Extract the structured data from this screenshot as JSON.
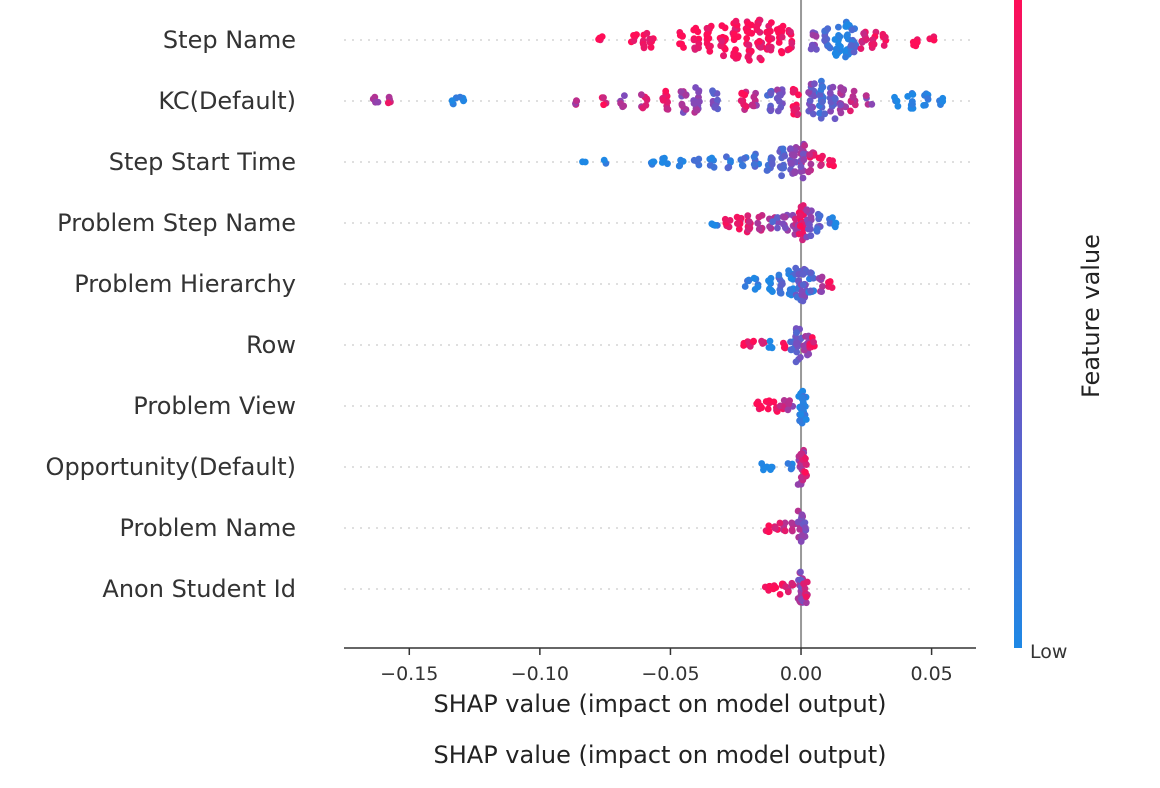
{
  "chart_data": {
    "type": "scatter",
    "subtype": "shap-beeswarm",
    "xlabel": "SHAP value (impact on model output)",
    "xlabel_repeat": "SHAP value (impact on model output)",
    "xlim": [
      -0.175,
      0.067
    ],
    "xticks": [
      -0.15,
      -0.1,
      -0.05,
      0.0,
      0.05
    ],
    "xtick_labels": [
      "−0.15",
      "−0.10",
      "−0.05",
      "0.00",
      "0.05"
    ],
    "colorbar": {
      "label": "Feature value",
      "low_label": "Low",
      "high_label": "",
      "low_color": "#1E88E5",
      "high_color": "#FF0D57",
      "mid_color": "#7C4DBE"
    },
    "features": [
      {
        "name": "Step Name",
        "points": [
          [
            -0.077,
            1.0
          ],
          [
            -0.064,
            1.0
          ],
          [
            -0.06,
            1.0
          ],
          [
            -0.057,
            1.0
          ],
          [
            -0.046,
            1.0
          ],
          [
            -0.04,
            1.0
          ],
          [
            -0.035,
            1.0
          ],
          [
            -0.03,
            1.0
          ],
          [
            -0.025,
            1.0
          ],
          [
            -0.02,
            1.0
          ],
          [
            -0.016,
            1.0
          ],
          [
            -0.012,
            1.0
          ],
          [
            -0.008,
            1.0
          ],
          [
            -0.004,
            1.0
          ],
          [
            0.005,
            0.5
          ],
          [
            0.01,
            0.3
          ],
          [
            0.014,
            0.0
          ],
          [
            0.018,
            0.0
          ],
          [
            0.02,
            0.2
          ],
          [
            0.024,
            0.8
          ],
          [
            0.028,
            1.0
          ],
          [
            0.032,
            1.0
          ],
          [
            0.044,
            1.0
          ],
          [
            0.05,
            1.0
          ]
        ],
        "widths": [
          4,
          6,
          8,
          8,
          8,
          12,
          14,
          16,
          20,
          22,
          20,
          18,
          14,
          10,
          10,
          14,
          16,
          18,
          14,
          10,
          8,
          6,
          6,
          4
        ]
      },
      {
        "name": "KC(Default)",
        "points": [
          [
            -0.163,
            0.7
          ],
          [
            -0.158,
            0.8
          ],
          [
            -0.133,
            0.0
          ],
          [
            -0.13,
            0.0
          ],
          [
            -0.087,
            0.7
          ],
          [
            -0.075,
            0.9
          ],
          [
            -0.068,
            0.6
          ],
          [
            -0.06,
            0.8
          ],
          [
            -0.052,
            0.9
          ],
          [
            -0.045,
            0.6
          ],
          [
            -0.04,
            0.6
          ],
          [
            -0.033,
            0.4
          ],
          [
            -0.022,
            0.9
          ],
          [
            -0.018,
            0.7
          ],
          [
            -0.012,
            0.3
          ],
          [
            -0.008,
            0.5
          ],
          [
            -0.002,
            1.0
          ],
          [
            0.004,
            0.5
          ],
          [
            0.008,
            0.2
          ],
          [
            0.012,
            0.4
          ],
          [
            0.016,
            0.6
          ],
          [
            0.02,
            0.8
          ],
          [
            0.026,
            0.6
          ],
          [
            0.036,
            0.0
          ],
          [
            0.042,
            0.0
          ],
          [
            0.048,
            0.0
          ],
          [
            0.054,
            0.0
          ]
        ],
        "widths": [
          4,
          4,
          4,
          4,
          4,
          4,
          6,
          8,
          10,
          12,
          14,
          12,
          10,
          8,
          10,
          12,
          14,
          18,
          20,
          18,
          14,
          10,
          6,
          6,
          10,
          8,
          4
        ]
      },
      {
        "name": "Step Start Time",
        "points": [
          [
            -0.083,
            0.0
          ],
          [
            -0.075,
            0.0
          ],
          [
            -0.057,
            0.0
          ],
          [
            -0.052,
            0.0
          ],
          [
            -0.046,
            0.0
          ],
          [
            -0.04,
            0.1
          ],
          [
            -0.034,
            0.1
          ],
          [
            -0.028,
            0.2
          ],
          [
            -0.022,
            0.1
          ],
          [
            -0.017,
            0.2
          ],
          [
            -0.012,
            0.2
          ],
          [
            -0.007,
            0.3
          ],
          [
            -0.003,
            0.5
          ],
          [
            0.001,
            0.6
          ],
          [
            0.004,
            0.8
          ],
          [
            0.008,
            0.9
          ],
          [
            0.012,
            1.0
          ]
        ],
        "widths": [
          2,
          2,
          4,
          4,
          4,
          4,
          6,
          6,
          6,
          8,
          10,
          14,
          18,
          18,
          10,
          6,
          4
        ]
      },
      {
        "name": "Problem Step Name",
        "points": [
          [
            -0.033,
            0.1
          ],
          [
            -0.028,
            0.9
          ],
          [
            -0.024,
            0.9
          ],
          [
            -0.02,
            0.9
          ],
          [
            -0.016,
            0.8
          ],
          [
            -0.011,
            0.6
          ],
          [
            -0.01,
            0.4
          ],
          [
            -0.006,
            0.6
          ],
          [
            -0.002,
            0.7
          ],
          [
            0.0,
            0.9
          ],
          [
            0.003,
            0.5
          ],
          [
            0.007,
            0.3
          ],
          [
            0.011,
            0.1
          ],
          [
            0.013,
            0.0
          ]
        ],
        "widths": [
          4,
          6,
          8,
          10,
          8,
          6,
          6,
          8,
          12,
          18,
          14,
          10,
          6,
          4
        ]
      },
      {
        "name": "Problem Hierarchy",
        "points": [
          [
            -0.021,
            0.1
          ],
          [
            -0.017,
            0.1
          ],
          [
            -0.012,
            0.0
          ],
          [
            -0.008,
            0.2
          ],
          [
            -0.004,
            0.1
          ],
          [
            -0.001,
            0.3
          ],
          [
            0.001,
            0.4
          ],
          [
            0.004,
            0.2
          ],
          [
            0.008,
            0.6
          ],
          [
            0.011,
            0.9
          ]
        ],
        "widths": [
          4,
          6,
          8,
          10,
          14,
          18,
          18,
          12,
          8,
          4
        ]
      },
      {
        "name": "Row",
        "points": [
          [
            -0.021,
            1.0
          ],
          [
            -0.019,
            1.0
          ],
          [
            -0.015,
            0.9
          ],
          [
            -0.012,
            0.0
          ],
          [
            -0.007,
            1.0
          ],
          [
            -0.003,
            0.2
          ],
          [
            -0.001,
            0.4
          ],
          [
            0.002,
            0.6
          ],
          [
            0.004,
            0.9
          ]
        ],
        "widths": [
          4,
          4,
          4,
          4,
          4,
          10,
          18,
          14,
          8
        ]
      },
      {
        "name": "Problem View",
        "points": [
          [
            -0.016,
            1.0
          ],
          [
            -0.013,
            1.0
          ],
          [
            -0.01,
            0.9
          ],
          [
            -0.007,
            0.8
          ],
          [
            -0.004,
            0.7
          ],
          [
            0.0,
            0.0
          ],
          [
            0.001,
            0.1
          ]
        ],
        "widths": [
          6,
          6,
          6,
          6,
          6,
          18,
          14
        ]
      },
      {
        "name": "Opportunity(Default)",
        "points": [
          [
            -0.014,
            0.0
          ],
          [
            -0.011,
            0.0
          ],
          [
            -0.004,
            0.0
          ],
          [
            0.0,
            0.7
          ],
          [
            0.001,
            0.9
          ]
        ],
        "widths": [
          4,
          4,
          4,
          18,
          14
        ]
      },
      {
        "name": "Problem Name",
        "points": [
          [
            -0.013,
            1.0
          ],
          [
            -0.01,
            0.9
          ],
          [
            -0.007,
            0.8
          ],
          [
            -0.003,
            0.7
          ],
          [
            0.0,
            0.6
          ],
          [
            0.001,
            0.5
          ]
        ],
        "widths": [
          4,
          4,
          6,
          6,
          18,
          14
        ]
      },
      {
        "name": "Anon Student Id",
        "points": [
          [
            -0.013,
            1.0
          ],
          [
            -0.01,
            1.0
          ],
          [
            -0.007,
            0.9
          ],
          [
            -0.004,
            0.8
          ],
          [
            0.0,
            0.6
          ],
          [
            0.001,
            0.5
          ],
          [
            0.002,
            0.8
          ]
        ],
        "widths": [
          4,
          4,
          6,
          6,
          18,
          14,
          8
        ]
      }
    ]
  }
}
